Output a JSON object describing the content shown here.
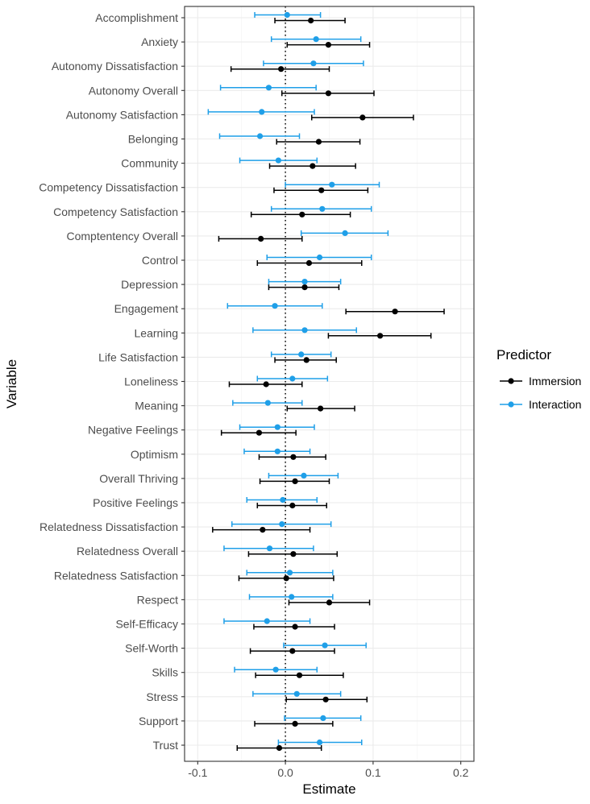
{
  "chart_data": {
    "type": "forest-plot",
    "xlabel": "Estimate",
    "ylabel": "Variable",
    "xlim": [
      -0.115,
      0.215
    ],
    "xticks": [
      -0.1,
      0.0,
      0.1,
      0.2
    ],
    "xtick_labels": [
      "-0.1",
      "0.0",
      "0.1",
      "0.2"
    ],
    "reference_line": 0,
    "grid": true,
    "legend": {
      "title": "Predictor",
      "position": "right"
    },
    "series": [
      {
        "name": "Immersion",
        "color": "#000000",
        "estimates": [
          0.029,
          0.049,
          -0.005,
          0.049,
          0.088,
          0.038,
          0.031,
          0.041,
          0.019,
          -0.028,
          0.027,
          0.022,
          0.125,
          0.108,
          0.024,
          -0.022,
          0.04,
          -0.03,
          0.009,
          0.011,
          0.008,
          -0.026,
          0.009,
          0.001,
          0.05,
          0.011,
          0.008,
          0.016,
          0.046,
          0.011,
          -0.007
        ],
        "lower": [
          -0.012,
          0.002,
          -0.062,
          -0.004,
          0.03,
          -0.01,
          -0.018,
          -0.013,
          -0.039,
          -0.076,
          -0.032,
          -0.019,
          0.069,
          0.049,
          -0.012,
          -0.064,
          0.002,
          -0.073,
          -0.03,
          -0.029,
          -0.032,
          -0.083,
          -0.042,
          -0.053,
          0.004,
          -0.036,
          -0.04,
          -0.034,
          0.001,
          -0.035,
          -0.055
        ],
        "upper": [
          0.068,
          0.096,
          0.05,
          0.101,
          0.146,
          0.085,
          0.08,
          0.094,
          0.074,
          0.019,
          0.087,
          0.061,
          0.181,
          0.166,
          0.058,
          0.019,
          0.079,
          0.012,
          0.046,
          0.05,
          0.047,
          0.028,
          0.059,
          0.055,
          0.096,
          0.056,
          0.056,
          0.066,
          0.093,
          0.054,
          0.041
        ]
      },
      {
        "name": "Interaction",
        "color": "#1f9fe8",
        "estimates": [
          0.002,
          0.035,
          0.032,
          -0.019,
          -0.027,
          -0.029,
          -0.008,
          0.053,
          0.042,
          0.068,
          0.039,
          0.022,
          -0.012,
          0.022,
          0.018,
          0.008,
          -0.02,
          -0.009,
          -0.009,
          0.021,
          -0.003,
          -0.004,
          -0.018,
          0.005,
          0.007,
          -0.021,
          0.045,
          -0.011,
          0.013,
          0.043,
          0.039
        ],
        "lower": [
          -0.035,
          -0.016,
          -0.025,
          -0.074,
          -0.088,
          -0.075,
          -0.052,
          0.0,
          -0.016,
          0.018,
          -0.021,
          -0.019,
          -0.066,
          -0.037,
          -0.016,
          -0.032,
          -0.06,
          -0.052,
          -0.047,
          -0.019,
          -0.044,
          -0.061,
          -0.07,
          -0.044,
          -0.041,
          -0.07,
          -0.002,
          -0.058,
          -0.037,
          -0.001,
          -0.008
        ],
        "upper": [
          0.04,
          0.086,
          0.089,
          0.035,
          0.033,
          0.016,
          0.036,
          0.107,
          0.098,
          0.117,
          0.098,
          0.063,
          0.042,
          0.081,
          0.052,
          0.048,
          0.019,
          0.033,
          0.028,
          0.06,
          0.036,
          0.052,
          0.032,
          0.054,
          0.054,
          0.028,
          0.092,
          0.036,
          0.063,
          0.086,
          0.087
        ]
      }
    ],
    "categories": [
      "Accomplishment",
      "Anxiety",
      "Autonomy Dissatisfaction",
      "Autonomy Overall",
      "Autonomy Satisfaction",
      "Belonging",
      "Community",
      "Competency Dissatisfaction",
      "Competency Satisfaction",
      "Comptentency Overall",
      "Control",
      "Depression",
      "Engagement",
      "Learning",
      "Life Satisfaction",
      "Loneliness",
      "Meaning",
      "Negative Feelings",
      "Optimism",
      "Overall Thriving",
      "Positive Feelings",
      "Relatedness Dissatisfaction",
      "Relatedness Overall",
      "Relatedness Satisfaction",
      "Respect",
      "Self-Efficacy",
      "Self-Worth",
      "Skills",
      "Stress",
      "Support",
      "Trust"
    ]
  }
}
